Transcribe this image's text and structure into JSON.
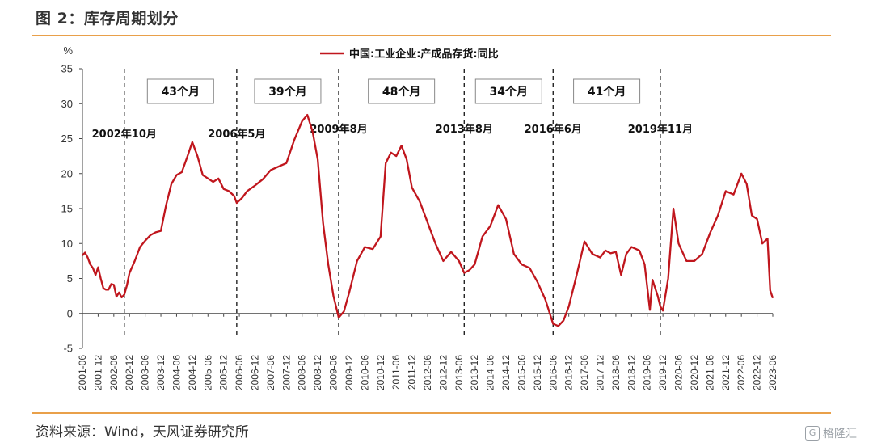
{
  "header": {
    "title": "图 2：库存周期划分"
  },
  "footer": {
    "source": "资料来源：Wind，天风证券研究所",
    "watermark": "格隆汇"
  },
  "chart_data": {
    "type": "line",
    "ylabel": "%",
    "ylim": [
      -5,
      35
    ],
    "yticks": [
      35,
      30,
      25,
      20,
      15,
      10,
      5,
      0,
      -5
    ],
    "legend": {
      "label": "中国:工业企业:产成品存货:同比",
      "placement": "top-center"
    },
    "x_tick_labels": [
      "2001-06",
      "2001-12",
      "2002-06",
      "2002-12",
      "2003-06",
      "2003-12",
      "2004-06",
      "2004-12",
      "2005-06",
      "2005-12",
      "2006-06",
      "2006-12",
      "2007-06",
      "2007-12",
      "2008-06",
      "2008-12",
      "2009-06",
      "2009-12",
      "2010-06",
      "2010-12",
      "2011-06",
      "2011-12",
      "2012-06",
      "2012-12",
      "2013-06",
      "2013-12",
      "2014-06",
      "2014-12",
      "2015-06",
      "2015-12",
      "2016-06",
      "2016-12",
      "2017-06",
      "2017-12",
      "2018-06",
      "2018-12",
      "2019-06",
      "2019-12",
      "2020-06",
      "2020-12",
      "2021-06",
      "2021-12",
      "2022-06",
      "2022-12",
      "2023-06"
    ],
    "x_start": "2001-06",
    "x_end": "2023-06",
    "cycle_markers": [
      {
        "date": "2002-10",
        "label": "2002年10月"
      },
      {
        "date": "2006-05",
        "label": "2006年5月"
      },
      {
        "date": "2009-08",
        "label": "2009年8月"
      },
      {
        "date": "2013-08",
        "label": "2013年8月"
      },
      {
        "date": "2016-06",
        "label": "2016年6月"
      },
      {
        "date": "2019-11",
        "label": "2019年11月"
      }
    ],
    "cycle_durations": [
      {
        "from": "2002-10",
        "to": "2006-05",
        "label": "43个月"
      },
      {
        "from": "2006-05",
        "to": "2009-08",
        "label": "39个月"
      },
      {
        "from": "2009-08",
        "to": "2013-08",
        "label": "48个月"
      },
      {
        "from": "2013-08",
        "to": "2016-06",
        "label": "34个月"
      },
      {
        "from": "2016-06",
        "to": "2019-11",
        "label": "41个月"
      }
    ],
    "series": [
      {
        "name": "中国:工业企业:产成品存货:同比",
        "color": "#c0161d",
        "points": [
          [
            "2001-06",
            8.3
          ],
          [
            "2001-07",
            8.7
          ],
          [
            "2001-08",
            8.0
          ],
          [
            "2001-09",
            7.0
          ],
          [
            "2001-10",
            6.5
          ],
          [
            "2001-11",
            5.5
          ],
          [
            "2001-12",
            6.6
          ],
          [
            "2002-01",
            5.0
          ],
          [
            "2002-02",
            3.6
          ],
          [
            "2002-03",
            3.4
          ],
          [
            "2002-04",
            3.4
          ],
          [
            "2002-05",
            4.2
          ],
          [
            "2002-06",
            4.1
          ],
          [
            "2002-07",
            2.4
          ],
          [
            "2002-08",
            3.0
          ],
          [
            "2002-09",
            2.3
          ],
          [
            "2002-10",
            2.7
          ],
          [
            "2002-11",
            4.0
          ],
          [
            "2002-12",
            5.8
          ],
          [
            "2003-02",
            7.5
          ],
          [
            "2003-04",
            9.5
          ],
          [
            "2003-06",
            10.4
          ],
          [
            "2003-08",
            11.2
          ],
          [
            "2003-10",
            11.6
          ],
          [
            "2003-12",
            11.8
          ],
          [
            "2004-02",
            15.5
          ],
          [
            "2004-04",
            18.5
          ],
          [
            "2004-06",
            19.8
          ],
          [
            "2004-08",
            20.2
          ],
          [
            "2004-10",
            22.3
          ],
          [
            "2004-12",
            24.5
          ],
          [
            "2005-02",
            22.5
          ],
          [
            "2005-04",
            19.8
          ],
          [
            "2005-06",
            19.3
          ],
          [
            "2005-08",
            18.8
          ],
          [
            "2005-10",
            19.3
          ],
          [
            "2005-12",
            17.8
          ],
          [
            "2006-02",
            17.5
          ],
          [
            "2006-04",
            16.8
          ],
          [
            "2006-05",
            15.8
          ],
          [
            "2006-07",
            16.5
          ],
          [
            "2006-09",
            17.5
          ],
          [
            "2006-12",
            18.3
          ],
          [
            "2007-03",
            19.2
          ],
          [
            "2007-06",
            20.5
          ],
          [
            "2007-09",
            21.0
          ],
          [
            "2007-12",
            21.5
          ],
          [
            "2008-03",
            24.8
          ],
          [
            "2008-06",
            27.5
          ],
          [
            "2008-08",
            28.4
          ],
          [
            "2008-10",
            26.0
          ],
          [
            "2008-12",
            22.0
          ],
          [
            "2009-02",
            13.0
          ],
          [
            "2009-04",
            7.0
          ],
          [
            "2009-06",
            2.5
          ],
          [
            "2009-08",
            -0.6
          ],
          [
            "2009-10",
            0.3
          ],
          [
            "2009-12",
            3.0
          ],
          [
            "2010-03",
            7.5
          ],
          [
            "2010-06",
            9.5
          ],
          [
            "2010-09",
            9.2
          ],
          [
            "2010-12",
            11.0
          ],
          [
            "2011-02",
            21.5
          ],
          [
            "2011-04",
            23.0
          ],
          [
            "2011-06",
            22.5
          ],
          [
            "2011-08",
            24.0
          ],
          [
            "2011-10",
            22.0
          ],
          [
            "2011-12",
            18.0
          ],
          [
            "2012-03",
            16.0
          ],
          [
            "2012-06",
            13.0
          ],
          [
            "2012-09",
            10.0
          ],
          [
            "2012-12",
            7.5
          ],
          [
            "2013-03",
            8.8
          ],
          [
            "2013-06",
            7.5
          ],
          [
            "2013-08",
            5.8
          ],
          [
            "2013-10",
            6.2
          ],
          [
            "2013-12",
            7.0
          ],
          [
            "2014-03",
            11.0
          ],
          [
            "2014-06",
            12.5
          ],
          [
            "2014-09",
            15.5
          ],
          [
            "2014-12",
            13.5
          ],
          [
            "2015-03",
            8.5
          ],
          [
            "2015-06",
            7.0
          ],
          [
            "2015-09",
            6.5
          ],
          [
            "2015-12",
            4.5
          ],
          [
            "2016-03",
            2.0
          ],
          [
            "2016-06",
            -1.5
          ],
          [
            "2016-08",
            -1.8
          ],
          [
            "2016-10",
            -1.0
          ],
          [
            "2016-12",
            1.0
          ],
          [
            "2017-03",
            5.5
          ],
          [
            "2017-06",
            10.3
          ],
          [
            "2017-09",
            8.5
          ],
          [
            "2017-12",
            8.0
          ],
          [
            "2018-02",
            9.0
          ],
          [
            "2018-04",
            8.6
          ],
          [
            "2018-06",
            8.8
          ],
          [
            "2018-08",
            5.5
          ],
          [
            "2018-10",
            8.5
          ],
          [
            "2018-12",
            9.5
          ],
          [
            "2019-03",
            9.0
          ],
          [
            "2019-05",
            7.0
          ],
          [
            "2019-07",
            0.5
          ],
          [
            "2019-08",
            4.8
          ],
          [
            "2019-10",
            2.5
          ],
          [
            "2019-11",
            1.0
          ],
          [
            "2019-12",
            0.4
          ],
          [
            "2020-02",
            5.0
          ],
          [
            "2020-04",
            15.0
          ],
          [
            "2020-06",
            10.0
          ],
          [
            "2020-09",
            7.5
          ],
          [
            "2020-12",
            7.5
          ],
          [
            "2021-03",
            8.5
          ],
          [
            "2021-06",
            11.5
          ],
          [
            "2021-09",
            14.0
          ],
          [
            "2021-12",
            17.5
          ],
          [
            "2022-03",
            17.0
          ],
          [
            "2022-06",
            20.0
          ],
          [
            "2022-08",
            18.5
          ],
          [
            "2022-10",
            14.0
          ],
          [
            "2022-12",
            13.5
          ],
          [
            "2023-02",
            10.0
          ],
          [
            "2023-04",
            10.7
          ],
          [
            "2023-05",
            3.3
          ],
          [
            "2023-06",
            2.2
          ]
        ]
      }
    ]
  }
}
